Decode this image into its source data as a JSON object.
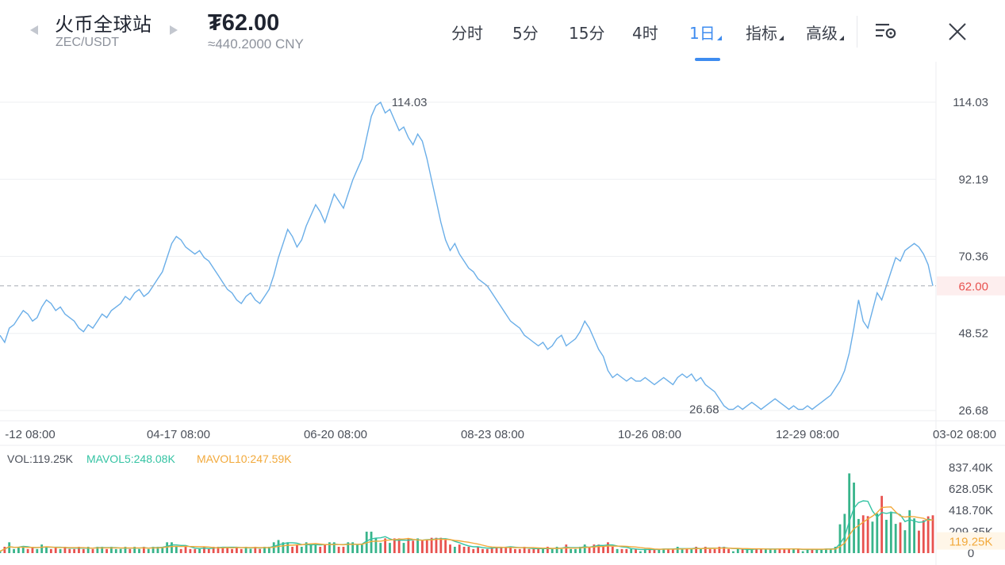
{
  "header": {
    "exchange_name": "火币全球站",
    "pair": "ZEC/USDT",
    "price": "₮62.00",
    "price_cny": "≈440.2000 CNY",
    "tabs": [
      {
        "label": "分时",
        "active": false,
        "has_menu": false
      },
      {
        "label": "5分",
        "active": false,
        "has_menu": false
      },
      {
        "label": "15分",
        "active": false,
        "has_menu": false
      },
      {
        "label": "4时",
        "active": false,
        "has_menu": false
      },
      {
        "label": "1日",
        "active": true,
        "has_menu": true
      },
      {
        "label": "指标",
        "active": false,
        "has_menu": true
      },
      {
        "label": "高级",
        "active": false,
        "has_menu": true
      }
    ],
    "icons": {
      "settings": "chart-settings-icon",
      "close": "close-icon"
    }
  },
  "colors": {
    "accent": "#3e8cf0",
    "price_line": "#6aaee8",
    "current_price": "#e8524f",
    "current_price_bg": "#fdeeee",
    "vol_up": "#38b48b",
    "vol_down": "#e8524f",
    "mavol5": "#34c3a3",
    "mavol10": "#f2a93b",
    "grid": "#eeeff2",
    "axis_text": "#4b505a"
  },
  "chart_data": [
    {
      "type": "line",
      "x_labels": [
        "-12 08:00",
        "04-17 08:00",
        "06-20 08:00",
        "08-23 08:00",
        "10-26 08:00",
        "12-29 08:00",
        "03-02 08:00"
      ],
      "y_ticks": [
        "114.03",
        "92.19",
        "70.36",
        "48.52",
        "26.68"
      ],
      "ylim": [
        26.68,
        114.03
      ],
      "current_price": 62.0,
      "current_price_label": "62.00",
      "high_label": "114.03",
      "low_label": "26.68",
      "grid": true,
      "values": [
        48,
        46,
        50,
        51,
        53,
        55,
        54,
        52,
        53,
        56,
        58,
        57,
        55,
        56,
        54,
        53,
        52,
        50,
        49,
        51,
        50,
        52,
        54,
        53,
        55,
        56,
        57,
        59,
        58,
        60,
        61,
        59,
        60,
        62,
        64,
        66,
        70,
        74,
        76,
        75,
        73,
        72,
        71,
        72,
        70,
        69,
        67,
        65,
        63,
        61,
        60,
        58,
        57,
        59,
        60,
        58,
        57,
        59,
        61,
        65,
        70,
        74,
        78,
        76,
        73,
        75,
        79,
        82,
        85,
        83,
        80,
        84,
        88,
        86,
        84,
        88,
        92,
        95,
        98,
        104,
        110,
        113,
        114,
        111,
        112,
        109,
        106,
        107,
        104,
        102,
        105,
        103,
        98,
        92,
        86,
        80,
        75,
        72,
        74,
        71,
        69,
        67,
        66,
        64,
        63,
        62,
        60,
        58,
        56,
        54,
        52,
        51,
        50,
        48,
        47,
        46,
        45,
        46,
        44,
        45,
        47,
        48,
        45,
        46,
        47,
        49,
        52,
        50,
        47,
        44,
        42,
        38,
        36,
        37,
        36,
        35,
        36,
        35,
        35,
        36,
        35,
        34,
        35,
        36,
        35,
        34,
        36,
        37,
        36,
        37,
        35,
        36,
        34,
        33,
        32,
        30,
        28,
        27,
        27,
        28,
        27,
        28,
        29,
        28,
        27,
        28,
        29,
        30,
        29,
        28,
        27,
        28,
        27,
        27,
        28,
        27,
        28,
        29,
        30,
        31,
        33,
        35,
        38,
        43,
        50,
        58,
        52,
        50,
        55,
        60,
        58,
        62,
        66,
        70,
        69,
        72,
        73,
        74,
        73,
        71,
        68,
        62
      ]
    },
    {
      "type": "bar",
      "legend": {
        "vol": "VOL:119.25K",
        "mavol5": "MAVOL5:248.08K",
        "mavol10": "MAVOL10:247.59K"
      },
      "y_ticks": [
        "837.40K",
        "628.05K",
        "418.70K",
        "209.35K",
        "0"
      ],
      "current_label": "119.25K",
      "ylim": [
        0,
        837.4
      ],
      "units": "K"
    }
  ]
}
